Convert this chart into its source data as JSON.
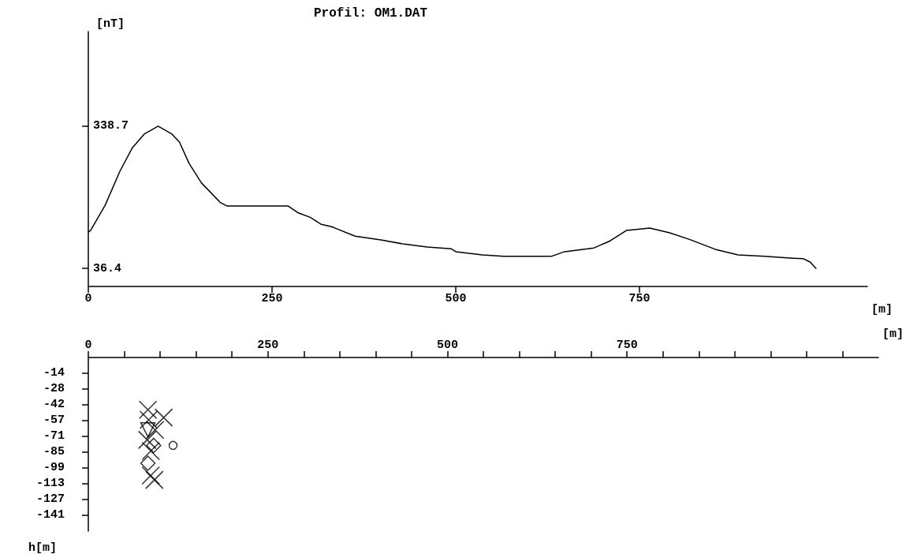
{
  "chart_data": [
    {
      "type": "line",
      "title": "Profil: OM1.DAT",
      "xlabel": "[m]",
      "ylabel": "[nT]",
      "xlim": [
        0,
        1060
      ],
      "ylim": [
        -2,
        540
      ],
      "xticks": [
        0,
        250,
        500,
        750
      ],
      "yticks": [
        36.4,
        338.7
      ],
      "series": [
        {
          "color": "#000000",
          "x": [
            0,
            3,
            23,
            43,
            60,
            76,
            95,
            113,
            124,
            137,
            154,
            180,
            189,
            259,
            272,
            285,
            302,
            317,
            331,
            336,
            363,
            398,
            430,
            461,
            494,
            500,
            536,
            565,
            577,
            630,
            648,
            688,
            710,
            732,
            764,
            791,
            818,
            853,
            884,
            920,
            959,
            973,
            982,
            990
          ],
          "values": [
            114,
            117,
            171,
            243,
            293,
            322,
            338.7,
            323,
            305,
            260,
            218,
            176,
            169,
            169,
            169,
            155,
            145,
            130,
            125,
            122,
            105,
            97,
            88,
            82,
            78,
            72,
            65,
            62,
            62,
            62,
            72,
            80,
            95,
            117,
            122,
            112,
            98,
            77,
            65,
            62,
            58,
            57,
            50,
            36.4
          ]
        }
      ]
    },
    {
      "type": "scatter",
      "xlabel": "[m]",
      "ylabel": "h[m]",
      "xlim": [
        0,
        1100
      ],
      "ylim": [
        -156,
        0
      ],
      "xticks": [
        0,
        {
          "value": 50,
          "label": null
        },
        {
          "value": 100,
          "label": null
        },
        {
          "value": 150,
          "label": null
        },
        {
          "value": 200,
          "label": null
        },
        250,
        {
          "value": 300,
          "label": null
        },
        {
          "value": 350,
          "label": null
        },
        {
          "value": 400,
          "label": null
        },
        {
          "value": 450,
          "label": null
        },
        500,
        {
          "value": 550,
          "label": null
        },
        {
          "value": 600,
          "label": null
        },
        {
          "value": 650,
          "label": null
        },
        {
          "value": 700,
          "label": null
        },
        750,
        {
          "value": 800,
          "label": null
        },
        {
          "value": 850,
          "label": null
        },
        {
          "value": 900,
          "label": null
        },
        {
          "value": 950,
          "label": null
        },
        {
          "value": 1000,
          "label": null
        },
        {
          "value": 1050,
          "label": null
        }
      ],
      "yticks": [
        {
          "value": -14.15,
          "label": "-14"
        },
        {
          "value": -28.3,
          "label": "-28"
        },
        {
          "value": -42.45,
          "label": "-42"
        },
        {
          "value": -56.6,
          "label": "-57"
        },
        {
          "value": -70.75,
          "label": "-71"
        },
        {
          "value": -84.9,
          "label": "-85"
        },
        {
          "value": -99.05,
          "label": "-99"
        },
        {
          "value": -113.2,
          "label": "-113"
        },
        {
          "value": -127.35,
          "label": "-127"
        },
        {
          "value": -141.5,
          "label": "-141"
        }
      ],
      "series": [
        {
          "color": "#000000",
          "marker": "cross",
          "x": [
            105,
            93,
            82,
            87,
            87,
            92,
            83,
            84
          ],
          "values": [
            -54,
            -65,
            -74,
            -84,
            -106,
            -110,
            -47,
            -56
          ]
        },
        {
          "color": "#000000",
          "marker": "diamond",
          "x": [
            91,
            83
          ],
          "values": [
            -79,
            -95
          ]
        },
        {
          "color": "#000000",
          "marker": "triangle",
          "x": [
            83
          ],
          "values": [
            -65
          ]
        },
        {
          "color": "#000000",
          "marker": "circle",
          "x": [
            118
          ],
          "values": [
            -79
          ]
        }
      ]
    }
  ]
}
